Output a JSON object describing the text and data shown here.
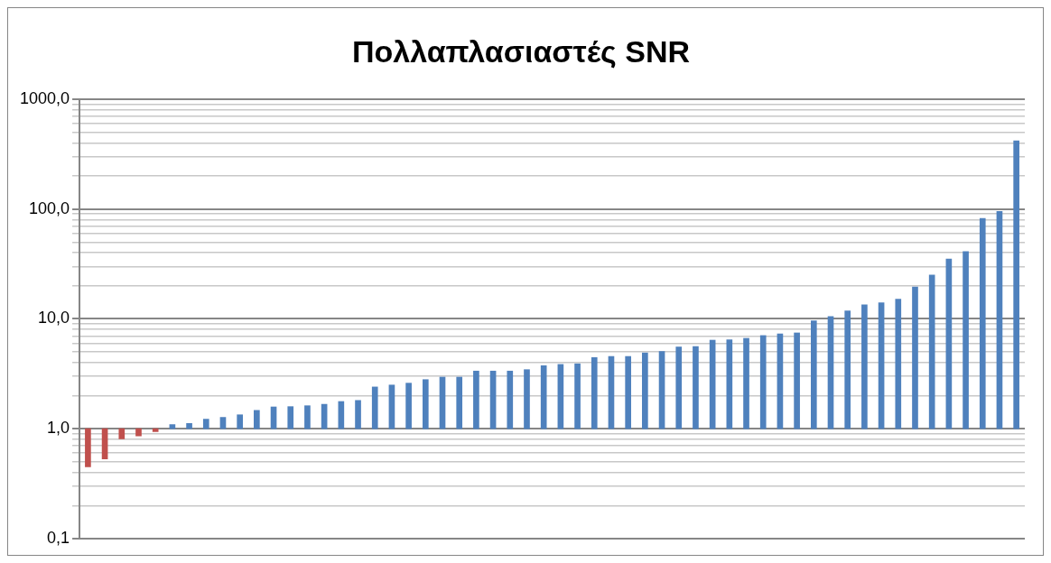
{
  "chart_data": {
    "type": "bar",
    "title": "Πολλαπλασιαστές SNR",
    "categories": [
      null,
      null,
      null,
      null,
      null,
      null,
      null,
      null,
      null,
      null,
      null,
      null,
      null,
      null,
      null,
      null,
      null,
      null,
      null,
      null,
      null,
      null,
      null,
      null,
      null,
      null,
      null,
      null,
      null,
      null,
      null,
      null,
      null,
      null,
      null,
      null,
      null,
      null,
      null,
      null,
      null,
      null,
      null,
      null,
      null,
      null,
      null,
      null,
      null,
      null,
      null,
      null,
      null,
      null,
      null,
      null
    ],
    "values": [
      -0.55,
      -0.47,
      -0.19,
      -0.14,
      -0.06,
      0.09,
      0.12,
      0.22,
      0.27,
      0.34,
      0.47,
      0.58,
      0.59,
      0.62,
      0.67,
      0.77,
      0.81,
      1.4,
      1.5,
      1.6,
      1.8,
      1.95,
      1.95,
      2.35,
      2.35,
      2.35,
      2.45,
      2.75,
      2.85,
      2.9,
      3.45,
      3.55,
      3.55,
      3.9,
      4.05,
      4.55,
      4.6,
      5.4,
      5.45,
      5.65,
      6.05,
      6.3,
      6.45,
      8.6,
      9.5,
      10.8,
      12.4,
      13,
      14.1,
      18.5,
      24,
      34,
      40,
      81,
      94,
      415
    ],
    "base": [
      1,
      1,
      1,
      1,
      1,
      1,
      1,
      1,
      1,
      1,
      1,
      1,
      1,
      1,
      1,
      1,
      1,
      1,
      1,
      1,
      1,
      1,
      1,
      1,
      1,
      1,
      1,
      1,
      1,
      1,
      1,
      1,
      1,
      1,
      1,
      1,
      1,
      1,
      1,
      1,
      1,
      1,
      1,
      1,
      1,
      1,
      1,
      1,
      1,
      1,
      1,
      1,
      1,
      1,
      1,
      1
    ],
    "colors": [
      "#c0504d",
      "#c0504d",
      "#c0504d",
      "#c0504d",
      "#c0504d",
      "#4f81bd",
      "#4f81bd",
      "#4f81bd",
      "#4f81bd",
      "#4f81bd",
      "#4f81bd",
      "#4f81bd",
      "#4f81bd",
      "#4f81bd",
      "#4f81bd",
      "#4f81bd",
      "#4f81bd",
      "#4f81bd",
      "#4f81bd",
      "#4f81bd",
      "#4f81bd",
      "#4f81bd",
      "#4f81bd",
      "#4f81bd",
      "#4f81bd",
      "#4f81bd",
      "#4f81bd",
      "#4f81bd",
      "#4f81bd",
      "#4f81bd",
      "#4f81bd",
      "#4f81bd",
      "#4f81bd",
      "#4f81bd",
      "#4f81bd",
      "#4f81bd",
      "#4f81bd",
      "#4f81bd",
      "#4f81bd",
      "#4f81bd",
      "#4f81bd",
      "#4f81bd",
      "#4f81bd",
      "#4f81bd",
      "#4f81bd",
      "#4f81bd",
      "#4f81bd",
      "#4f81bd",
      "#4f81bd",
      "#4f81bd",
      "#4f81bd",
      "#4f81bd",
      "#4f81bd",
      "#4f81bd",
      "#4f81bd",
      "#4f81bd"
    ],
    "log": "y",
    "ylim": [
      0.1,
      1000
    ],
    "yticks": [
      {
        "value": 0.1,
        "label": "0,1"
      },
      {
        "value": 0.2,
        "label": null
      },
      {
        "value": 0.3,
        "label": null
      },
      {
        "value": 0.4,
        "label": null
      },
      {
        "value": 0.5,
        "label": null
      },
      {
        "value": 0.6,
        "label": null
      },
      {
        "value": 0.7,
        "label": null
      },
      {
        "value": 0.8,
        "label": null
      },
      {
        "value": 0.9,
        "label": null
      },
      {
        "value": 1,
        "label": "1,0"
      },
      {
        "value": 2,
        "label": null
      },
      {
        "value": 3,
        "label": null
      },
      {
        "value": 4,
        "label": null
      },
      {
        "value": 5,
        "label": null
      },
      {
        "value": 6,
        "label": null
      },
      {
        "value": 7,
        "label": null
      },
      {
        "value": 8,
        "label": null
      },
      {
        "value": 9,
        "label": null
      },
      {
        "value": 10,
        "label": "10,0"
      },
      {
        "value": 20,
        "label": null
      },
      {
        "value": 30,
        "label": null
      },
      {
        "value": 40,
        "label": null
      },
      {
        "value": 50,
        "label": null
      },
      {
        "value": 60,
        "label": null
      },
      {
        "value": 70,
        "label": null
      },
      {
        "value": 80,
        "label": null
      },
      {
        "value": 90,
        "label": null
      },
      {
        "value": 100,
        "label": "100,0"
      },
      {
        "value": 200,
        "label": null
      },
      {
        "value": 300,
        "label": null
      },
      {
        "value": 400,
        "label": null
      },
      {
        "value": 500,
        "label": null
      },
      {
        "value": 600,
        "label": null
      },
      {
        "value": 700,
        "label": null
      },
      {
        "value": 800,
        "label": null
      },
      {
        "value": 900,
        "label": null
      },
      {
        "value": 1000,
        "label": "1000,0"
      }
    ],
    "grid": "y",
    "legend": false
  }
}
